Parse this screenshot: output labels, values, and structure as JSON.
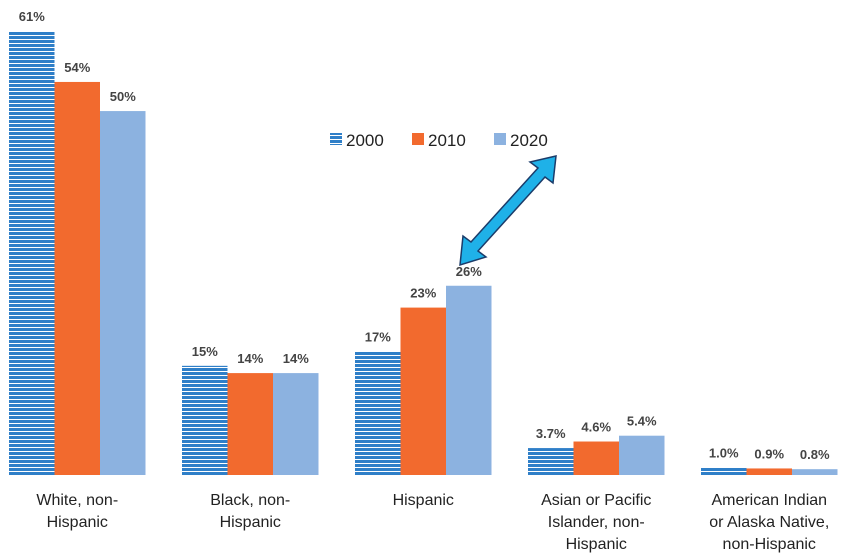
{
  "chart_data": {
    "type": "bar",
    "categories": [
      "White, non-\nHispanic",
      "Black, non-\nHispanic",
      "Hispanic",
      "Asian or Pacific\nIslander, non-\nHispanic",
      "American Indian\nor Alaska Native,\nnon-Hispanic"
    ],
    "series": [
      {
        "name": "2000",
        "color": "#2f7fc8",
        "values": [
          61,
          15,
          17,
          3.7,
          1.0
        ],
        "value_labels": [
          "61%",
          "15%",
          "17%",
          "3.7%",
          "1.0%"
        ]
      },
      {
        "name": "2010",
        "color": "#f26a2e",
        "values": [
          54,
          14,
          23,
          4.6,
          0.9
        ],
        "value_labels": [
          "54%",
          "14%",
          "23%",
          "4.6%",
          "0.9%"
        ]
      },
      {
        "name": "2020",
        "color": "#8cb2e0",
        "values": [
          50,
          14,
          26,
          5.4,
          0.8
        ],
        "value_labels": [
          "50%",
          "14%",
          "26%",
          "5.4%",
          "0.8%"
        ]
      }
    ]
  }
}
